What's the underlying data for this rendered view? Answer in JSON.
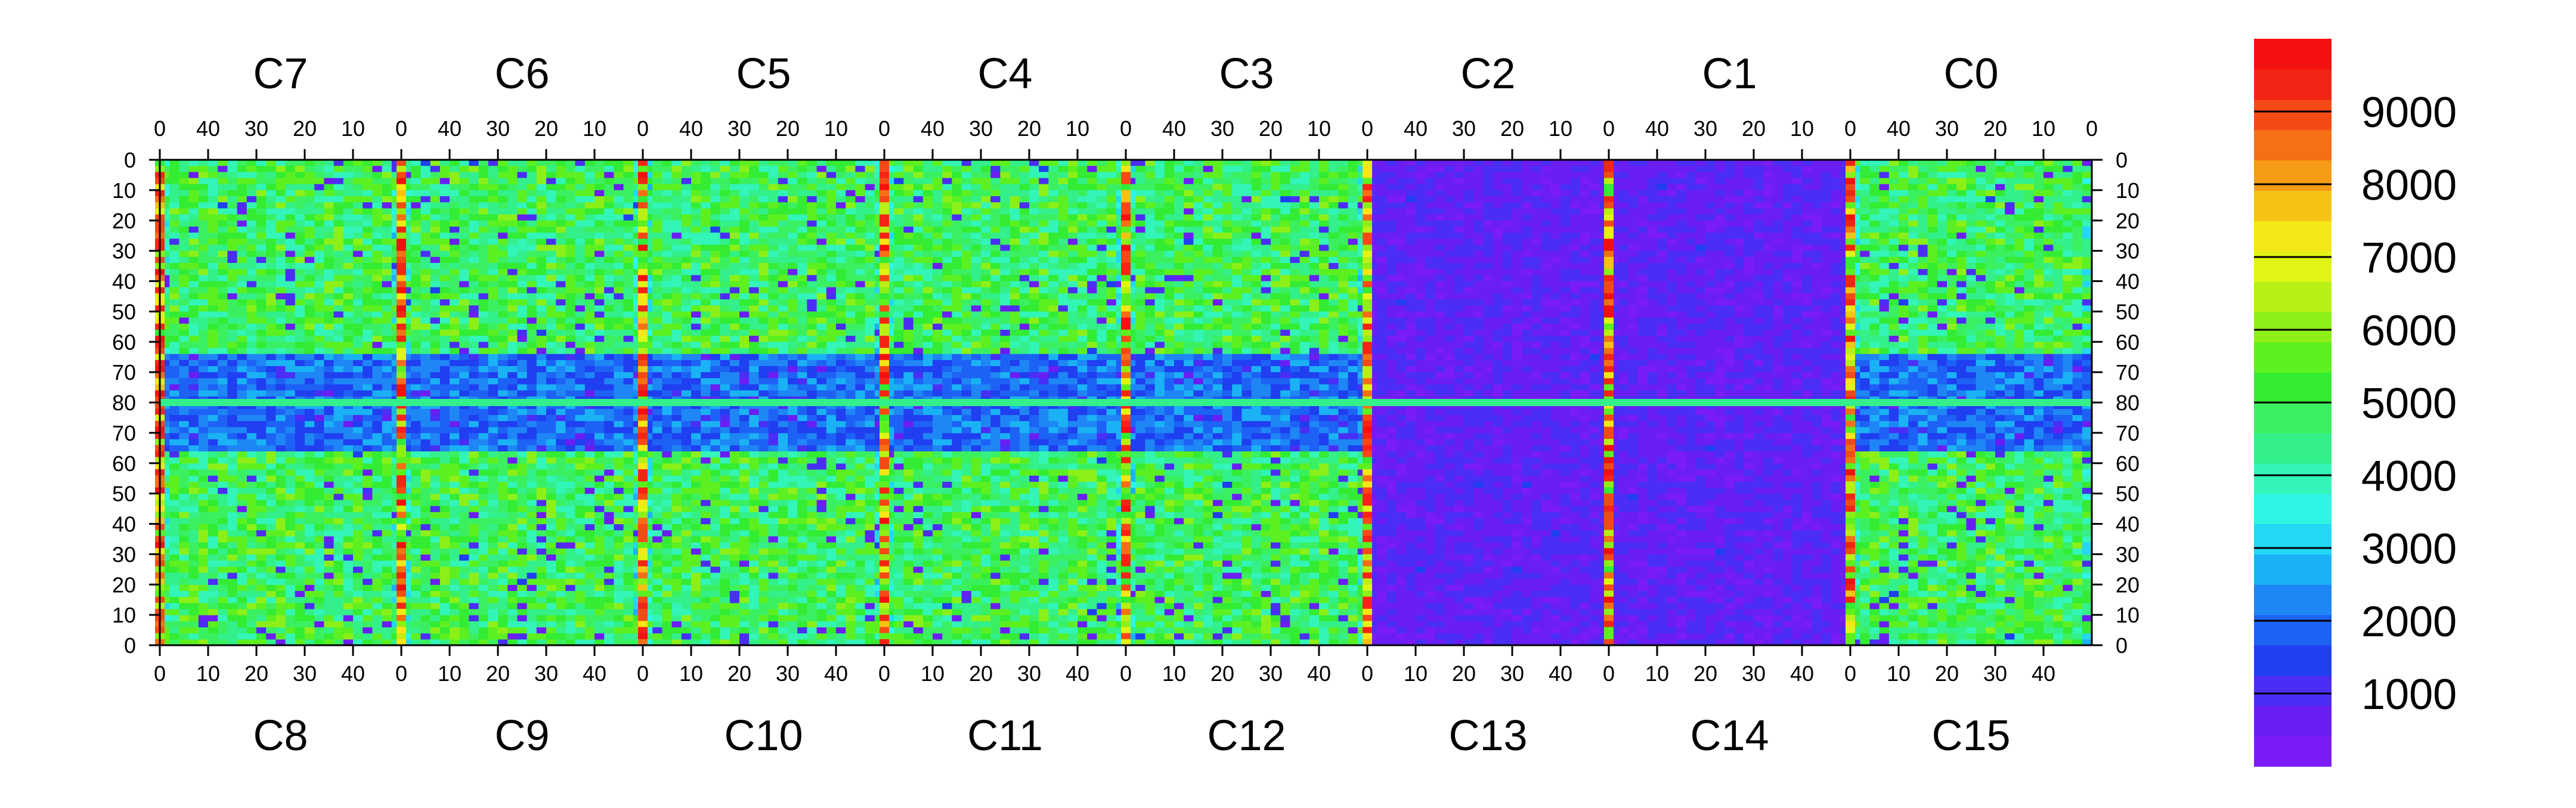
{
  "chart_data": {
    "type": "heatmap",
    "title": "",
    "top_blocks": [
      "C7",
      "C6",
      "C5",
      "C4",
      "C3",
      "C2",
      "C1",
      "C0"
    ],
    "bottom_blocks": [
      "C8",
      "C9",
      "C10",
      "C11",
      "C12",
      "C13",
      "C14",
      "C15"
    ],
    "top_x_tick_labels": [
      "40",
      "30",
      "20",
      "10",
      "0"
    ],
    "bottom_x_tick_labels": [
      "0",
      "10",
      "20",
      "30",
      "40"
    ],
    "x_range_per_block": [
      0,
      50
    ],
    "y_tick_labels": [
      "0",
      "10",
      "20",
      "30",
      "40",
      "50",
      "60",
      "70",
      "80",
      "70",
      "60",
      "50",
      "40",
      "30",
      "20",
      "10",
      "0"
    ],
    "y_range_top_half": [
      0,
      80
    ],
    "y_range_bottom_half": [
      80,
      0
    ],
    "z_range": [
      0,
      10000
    ],
    "colorbar": {
      "tick_labels": [
        "9000",
        "8000",
        "7000",
        "6000",
        "5000",
        "4000",
        "3000",
        "2000",
        "1000"
      ],
      "tick_values": [
        9000,
        8000,
        7000,
        6000,
        5000,
        4000,
        3000,
        2000,
        1000
      ],
      "colors": [
        "#7a1cf5",
        "#6a1ef3",
        "#4a2ef5",
        "#1f3ff0",
        "#1d62f5",
        "#1f86f5",
        "#1ab2f5",
        "#22d8f5",
        "#2ef5e3",
        "#33f5b8",
        "#33f08a",
        "#3bf060",
        "#33ec33",
        "#5df020",
        "#8cf018",
        "#b8f015",
        "#e0f515",
        "#f5e615",
        "#f5c215",
        "#f59b15",
        "#f57015",
        "#f54a15",
        "#f52515",
        "#f51010"
      ]
    },
    "blue_region_blocks": [
      "C1",
      "C13",
      "C14"
    ],
    "grid": false,
    "legend": "colorbar-right"
  }
}
